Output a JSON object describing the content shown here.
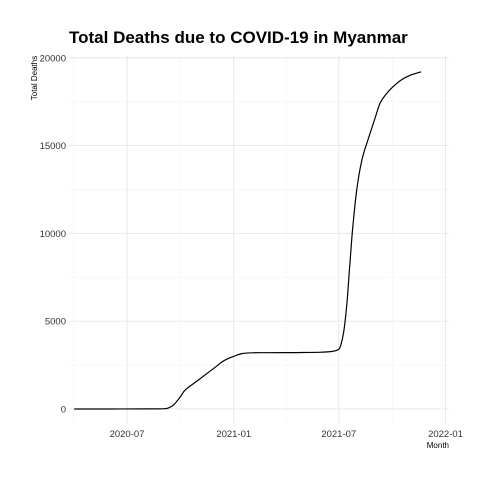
{
  "chart_data": {
    "type": "line",
    "title": "Total Deaths due to COVID-19 in Myanmar",
    "xlabel": "Month",
    "ylabel": "Total Deaths",
    "x_ticks": [
      "2020-07",
      "2021-01",
      "2021-07",
      "2022-01"
    ],
    "y_ticks": [
      "0",
      "5000",
      "10000",
      "15000",
      "20000"
    ],
    "xlim": [
      "2020-03-23",
      "2022-01-07"
    ],
    "ylim": [
      -800,
      20100
    ],
    "grid": true,
    "legend": "none",
    "series": [
      {
        "color": "#000000",
        "points": [
          [
            "2020-04-01",
            0
          ],
          [
            "2020-06-01",
            0
          ],
          [
            "2020-08-01",
            2
          ],
          [
            "2020-09-01",
            10
          ],
          [
            "2020-09-10",
            50
          ],
          [
            "2020-09-20",
            250
          ],
          [
            "2020-10-01",
            700
          ],
          [
            "2020-10-10",
            1100
          ],
          [
            "2020-11-01",
            1650
          ],
          [
            "2020-12-01",
            2400
          ],
          [
            "2020-12-15",
            2750
          ],
          [
            "2021-01-01",
            3000
          ],
          [
            "2021-01-15",
            3150
          ],
          [
            "2021-02-01",
            3200
          ],
          [
            "2021-03-01",
            3205
          ],
          [
            "2021-04-01",
            3210
          ],
          [
            "2021-05-01",
            3215
          ],
          [
            "2021-06-01",
            3230
          ],
          [
            "2021-06-20",
            3280
          ],
          [
            "2021-07-01",
            3400
          ],
          [
            "2021-07-05",
            3700
          ],
          [
            "2021-07-10",
            4500
          ],
          [
            "2021-07-15",
            6000
          ],
          [
            "2021-07-20",
            8200
          ],
          [
            "2021-07-25",
            10300
          ],
          [
            "2021-08-01",
            12500
          ],
          [
            "2021-08-10",
            14200
          ],
          [
            "2021-08-20",
            15300
          ],
          [
            "2021-09-01",
            16500
          ],
          [
            "2021-09-10",
            17400
          ],
          [
            "2021-09-20",
            17900
          ],
          [
            "2021-10-01",
            18300
          ],
          [
            "2021-10-15",
            18700
          ],
          [
            "2021-11-01",
            19000
          ],
          [
            "2021-11-20",
            19200
          ]
        ]
      }
    ]
  }
}
